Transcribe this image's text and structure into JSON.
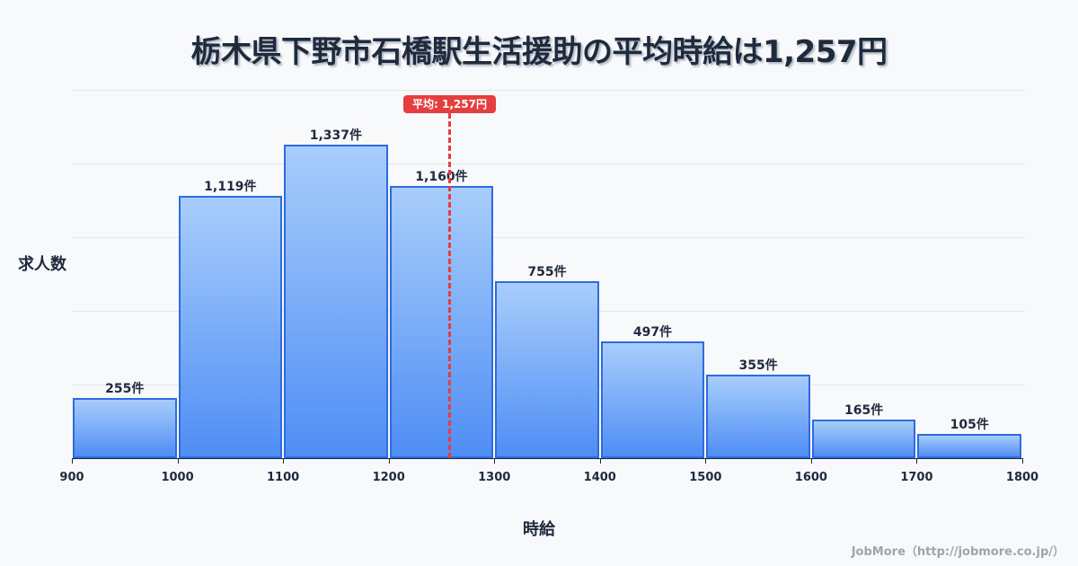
{
  "title": "栃木県下野市石橋駅生活援助の平均時給は1,257円",
  "y_axis_label": "求人数",
  "x_axis_label": "時給",
  "mean_badge": "平均: 1,257円",
  "credit": "JobMore（http://jobmore.co.jp/）",
  "colors": {
    "bar_border": "#2d6be0",
    "bar_top": "#a8cdfb",
    "bar_bottom": "#4f8ef5",
    "mean": "#e53e3e",
    "text": "#1f2a3d",
    "background": "#f8f9fb"
  },
  "ticks": [
    "900",
    "1000",
    "1100",
    "1200",
    "1300",
    "1400",
    "1500",
    "1600",
    "1700",
    "1800"
  ],
  "bars": [
    {
      "label": "255件"
    },
    {
      "label": "1,119件"
    },
    {
      "label": "1,337件"
    },
    {
      "label": "1,160件"
    },
    {
      "label": "755件"
    },
    {
      "label": "497件"
    },
    {
      "label": "355件"
    },
    {
      "label": "165件"
    },
    {
      "label": "105件"
    }
  ],
  "chart_data": {
    "type": "bar",
    "title": "栃木県下野市石橋駅生活援助の平均時給は1,257円",
    "xlabel": "時給",
    "ylabel": "求人数",
    "bins": [
      [
        900,
        1000
      ],
      [
        1000,
        1100
      ],
      [
        1100,
        1200
      ],
      [
        1200,
        1300
      ],
      [
        1300,
        1400
      ],
      [
        1400,
        1500
      ],
      [
        1500,
        1600
      ],
      [
        1600,
        1700
      ],
      [
        1700,
        1800
      ]
    ],
    "categories": [
      "900-1000",
      "1000-1100",
      "1100-1200",
      "1200-1300",
      "1300-1400",
      "1400-1500",
      "1500-1600",
      "1600-1700",
      "1700-1800"
    ],
    "values": [
      255,
      1119,
      1337,
      1160,
      755,
      497,
      355,
      165,
      105
    ],
    "value_unit": "件",
    "x_ticks": [
      900,
      1000,
      1100,
      1200,
      1300,
      1400,
      1500,
      1600,
      1700,
      1800
    ],
    "xlim": [
      900,
      1800
    ],
    "mean": 1257,
    "mean_label": "平均: 1,257円",
    "grid": true,
    "legend": null
  }
}
